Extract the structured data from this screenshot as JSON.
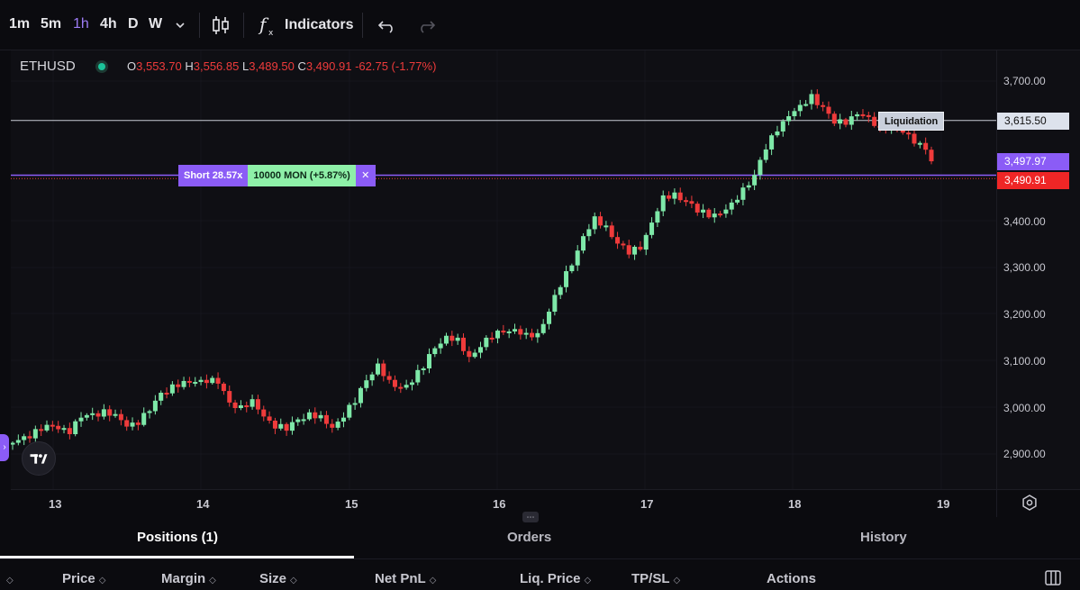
{
  "toolbar": {
    "timeframes": [
      "1m",
      "5m",
      "1h",
      "4h",
      "D",
      "W"
    ],
    "active_timeframe": "1h",
    "indicators_label": "Indicators"
  },
  "symbol": {
    "name": "ETHUSD",
    "o_label": "O",
    "o": "3,553.70",
    "h_label": "H",
    "h": "3,556.85",
    "l_label": "L",
    "l": "3,489.50",
    "c_label": "C",
    "c": "3,490.91",
    "change": "-62.75 (-1.77%)"
  },
  "price_axis": {
    "ticks": [
      "3,700.00",
      "3,400.00",
      "3,300.00",
      "3,200.00",
      "3,100.00",
      "3,000.00",
      "2,900.00"
    ],
    "liq_label": "3,615.50",
    "entry_label": "3,497.97",
    "last_label": "3,490.91"
  },
  "time_axis": {
    "ticks": [
      "13",
      "14",
      "15",
      "16",
      "17",
      "18",
      "19"
    ]
  },
  "liquidation_tag": "Liquidation",
  "position_tag": {
    "side": "Short 28.57x",
    "pnl": "10000 MON (+5.87%)",
    "close": "✕"
  },
  "panel": {
    "tabs": [
      "Positions (1)",
      "Orders",
      "History"
    ],
    "columns": [
      "Price",
      "Margin",
      "Size",
      "Net PnL",
      "Liq. Price",
      "TP/SL",
      "Actions"
    ]
  },
  "colors": {
    "up": "#7ee8a8",
    "down": "#ef3b3b",
    "accent": "#8b5cf6",
    "entry_line": "#8b5cf6",
    "liq_line": "#c8ccd4"
  },
  "chart_data": {
    "type": "candlestick",
    "symbol": "ETHUSD",
    "interval": "1h",
    "ylim": [
      2850,
      3750
    ],
    "x_ticks": [
      "13",
      "14",
      "15",
      "16",
      "17",
      "18",
      "19"
    ],
    "reference_lines": {
      "liquidation": 3615.5,
      "entry": 3497.97,
      "last": 3490.91
    },
    "anchors": [
      2920,
      2935,
      2950,
      2958,
      2960,
      2950,
      2975,
      2985,
      2992,
      2980,
      2965,
      2970,
      2990,
      3030,
      3045,
      3050,
      3060,
      3060,
      3050,
      3010,
      3000,
      3010,
      2985,
      2962,
      2950,
      2975,
      2985,
      2975,
      2960,
      2985,
      3010,
      3060,
      3090,
      3050,
      3045,
      3060,
      3085,
      3130,
      3150,
      3140,
      3110,
      3135,
      3150,
      3165,
      3165,
      3150,
      3160,
      3210,
      3260,
      3310,
      3365,
      3400,
      3390,
      3355,
      3330,
      3345,
      3395,
      3445,
      3460,
      3445,
      3420,
      3415,
      3415,
      3430,
      3470,
      3500,
      3555,
      3600,
      3625,
      3640,
      3670,
      3645,
      3610,
      3615,
      3630,
      3615,
      3600,
      3610,
      3590,
      3575,
      3555,
      3490
    ]
  }
}
